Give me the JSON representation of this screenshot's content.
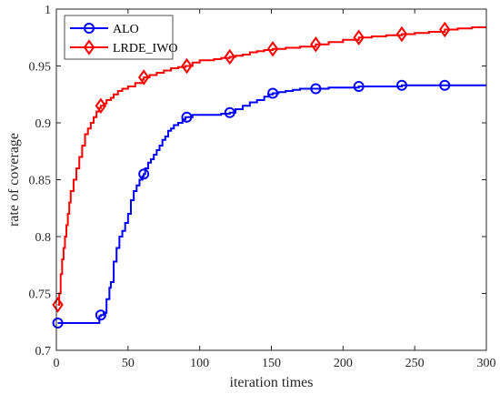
{
  "chart_data": {
    "type": "line",
    "xlabel": "iteration times",
    "ylabel": "rate of coverage",
    "xlim": [
      0,
      300
    ],
    "ylim": [
      0.7,
      1.0
    ],
    "x_ticks": [
      0,
      50,
      100,
      150,
      200,
      250,
      300
    ],
    "y_ticks": [
      0.7,
      0.75,
      0.8,
      0.85,
      0.9,
      0.95,
      1.0
    ],
    "x_tick_labels": [
      "0",
      "50",
      "100",
      "150",
      "200",
      "250",
      "300"
    ],
    "y_tick_labels": [
      "0.7",
      "0.75",
      "0.8",
      "0.85",
      "0.9",
      "0.95",
      "1"
    ],
    "grid": false,
    "legend_position": "top-left",
    "series": [
      {
        "name": "ALO",
        "color": "#0000ff",
        "marker": "circle",
        "x": [
          1,
          5,
          10,
          15,
          20,
          25,
          28,
          30,
          31,
          33,
          35,
          37,
          38,
          40,
          42,
          44,
          46,
          48,
          50,
          52,
          54,
          56,
          58,
          60,
          61,
          62,
          64,
          66,
          68,
          70,
          72,
          74,
          76,
          78,
          80,
          82,
          85,
          88,
          90,
          91,
          95,
          100,
          105,
          110,
          115,
          118,
          121,
          125,
          130,
          135,
          140,
          145,
          148,
          151,
          155,
          160,
          165,
          170,
          175,
          180,
          181,
          190,
          200,
          211,
          220,
          230,
          241,
          250,
          260,
          271,
          280,
          290,
          300
        ],
        "y": [
          0.724,
          0.724,
          0.724,
          0.724,
          0.724,
          0.724,
          0.724,
          0.73,
          0.731,
          0.733,
          0.745,
          0.755,
          0.76,
          0.778,
          0.79,
          0.8,
          0.805,
          0.812,
          0.82,
          0.832,
          0.84,
          0.845,
          0.85,
          0.853,
          0.855,
          0.86,
          0.865,
          0.868,
          0.872,
          0.876,
          0.88,
          0.885,
          0.888,
          0.893,
          0.895,
          0.898,
          0.9,
          0.903,
          0.905,
          0.905,
          0.907,
          0.907,
          0.907,
          0.907,
          0.908,
          0.908,
          0.909,
          0.912,
          0.915,
          0.918,
          0.92,
          0.923,
          0.925,
          0.926,
          0.927,
          0.928,
          0.929,
          0.93,
          0.93,
          0.93,
          0.93,
          0.931,
          0.931,
          0.932,
          0.932,
          0.932,
          0.933,
          0.933,
          0.933,
          0.933,
          0.933,
          0.933,
          0.933
        ],
        "marker_x": [
          1,
          31,
          61,
          91,
          121,
          151,
          181,
          211,
          241,
          271
        ],
        "marker_y": [
          0.724,
          0.731,
          0.855,
          0.905,
          0.909,
          0.926,
          0.93,
          0.932,
          0.933,
          0.933
        ]
      },
      {
        "name": "LRDE_IWO",
        "color": "#ff0000",
        "marker": "diamond",
        "x": [
          1,
          2,
          3,
          4,
          5,
          6,
          7,
          8,
          9,
          10,
          12,
          14,
          16,
          18,
          20,
          22,
          24,
          26,
          28,
          30,
          31,
          33,
          35,
          38,
          40,
          43,
          46,
          50,
          55,
          60,
          61,
          65,
          70,
          75,
          80,
          85,
          90,
          91,
          95,
          100,
          105,
          110,
          115,
          121,
          125,
          130,
          135,
          140,
          145,
          151,
          160,
          170,
          181,
          190,
          200,
          211,
          220,
          230,
          241,
          250,
          260,
          271,
          280,
          290,
          300
        ],
        "y": [
          0.74,
          0.75,
          0.767,
          0.78,
          0.79,
          0.8,
          0.81,
          0.82,
          0.83,
          0.84,
          0.85,
          0.86,
          0.87,
          0.88,
          0.89,
          0.895,
          0.9,
          0.905,
          0.91,
          0.913,
          0.915,
          0.917,
          0.92,
          0.922,
          0.925,
          0.928,
          0.93,
          0.932,
          0.935,
          0.938,
          0.94,
          0.942,
          0.944,
          0.946,
          0.948,
          0.949,
          0.95,
          0.95,
          0.953,
          0.955,
          0.955,
          0.956,
          0.957,
          0.958,
          0.959,
          0.96,
          0.962,
          0.963,
          0.964,
          0.965,
          0.966,
          0.967,
          0.969,
          0.971,
          0.973,
          0.975,
          0.976,
          0.977,
          0.978,
          0.979,
          0.98,
          0.982,
          0.983,
          0.984,
          0.984
        ],
        "marker_x": [
          1,
          31,
          61,
          91,
          121,
          151,
          181,
          211,
          241,
          271
        ],
        "marker_y": [
          0.74,
          0.915,
          0.94,
          0.95,
          0.958,
          0.965,
          0.969,
          0.975,
          0.978,
          0.982
        ]
      }
    ]
  }
}
